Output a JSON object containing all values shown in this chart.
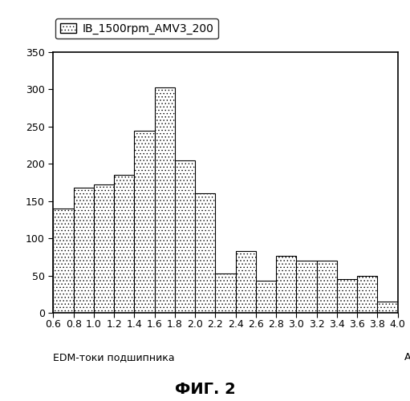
{
  "bar_positions": [
    0.6,
    0.8,
    1.0,
    1.2,
    1.4,
    1.6,
    1.8,
    2.0,
    2.2,
    2.4,
    2.6,
    2.8,
    3.0,
    3.2,
    3.4,
    3.6,
    3.8
  ],
  "bar_heights": [
    140,
    168,
    172,
    185,
    245,
    303,
    205,
    160,
    53,
    83,
    43,
    77,
    70,
    70,
    45,
    50,
    15
  ],
  "bar_width": 0.2,
  "xlim": [
    0.6,
    4.0
  ],
  "ylim": [
    0,
    350
  ],
  "yticks": [
    0,
    50,
    100,
    150,
    200,
    250,
    300,
    350
  ],
  "xticks_row1": [
    0.6,
    1.0,
    1.4,
    1.8,
    2.2,
    2.6,
    3.0,
    3.4,
    3.8
  ],
  "xticks_row2": [
    0.8,
    1.2,
    1.6,
    2.0,
    2.4,
    2.8,
    3.2,
    3.6,
    4.0
  ],
  "xlabel": "EDM-токи подшипника",
  "xlabel_right": "А",
  "legend_label": "IB_1500rpm_AMV3_200",
  "figure_label": "ФИГ. 2",
  "hatch_pattern": "....",
  "bar_facecolor": "#ffffff",
  "bar_edgecolor": "#000000",
  "background_color": "#ffffff",
  "legend_fontsize": 10,
  "label_fontsize": 9,
  "tick_fontsize": 9,
  "fig_label_fontsize": 14
}
